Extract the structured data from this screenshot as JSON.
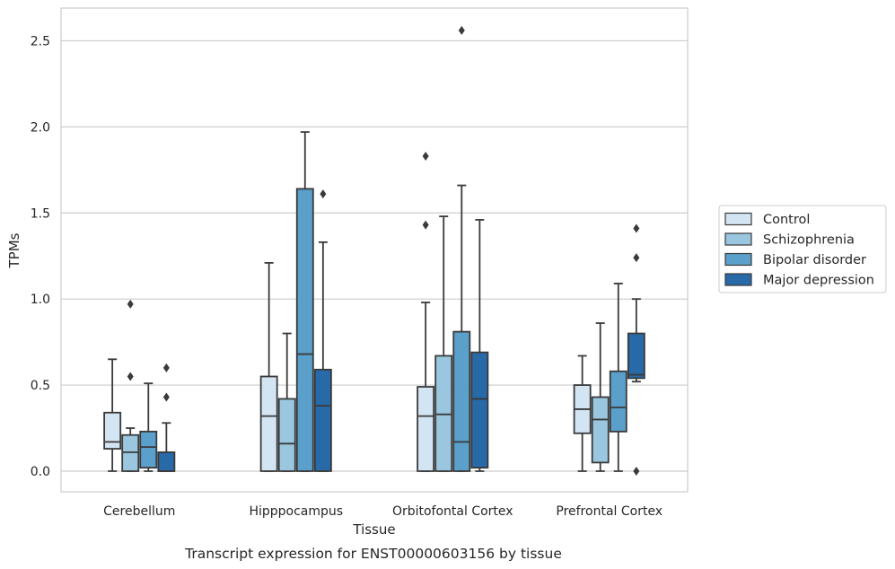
{
  "chart_data": {
    "type": "box",
    "xlabel": "Tissue",
    "ylabel": "TPMs",
    "caption": "Transcript expression for ENST00000603156 by tissue",
    "ylim": [
      -0.12,
      2.69
    ],
    "yticks": [
      "0.0",
      "0.5",
      "1.0",
      "1.5",
      "2.0",
      "2.5"
    ],
    "grid": "horizontal",
    "legend_position": "right",
    "categories": [
      "Cerebellum",
      "Hipppocampus",
      "Orbitofontal Cortex",
      "Prefrontal Cortex"
    ],
    "series": [
      {
        "name": "Control",
        "color": "#d3e4f3",
        "boxes": [
          {
            "whislo": 0.0,
            "q1": 0.13,
            "med": 0.17,
            "q3": 0.34,
            "whishi": 0.65,
            "fliers": []
          },
          {
            "whislo": 0.0,
            "q1": 0.0,
            "med": 0.32,
            "q3": 0.55,
            "whishi": 1.21,
            "fliers": []
          },
          {
            "whislo": 0.0,
            "q1": 0.0,
            "med": 0.32,
            "q3": 0.49,
            "whishi": 0.98,
            "fliers": [
              1.43,
              1.83
            ]
          },
          {
            "whislo": 0.0,
            "q1": 0.22,
            "med": 0.36,
            "q3": 0.5,
            "whishi": 0.67,
            "fliers": []
          }
        ]
      },
      {
        "name": "Schizophrenia",
        "color": "#9ac7df",
        "boxes": [
          {
            "whislo": 0.0,
            "q1": 0.0,
            "med": 0.11,
            "q3": 0.21,
            "whishi": 0.25,
            "fliers": [
              0.55,
              0.97
            ]
          },
          {
            "whislo": 0.0,
            "q1": 0.0,
            "med": 0.16,
            "q3": 0.42,
            "whishi": 0.8,
            "fliers": []
          },
          {
            "whislo": 0.0,
            "q1": 0.0,
            "med": 0.33,
            "q3": 0.67,
            "whishi": 1.48,
            "fliers": []
          },
          {
            "whislo": 0.0,
            "q1": 0.05,
            "med": 0.3,
            "q3": 0.43,
            "whishi": 0.86,
            "fliers": []
          }
        ]
      },
      {
        "name": "Bipolar disorder",
        "color": "#5b9fcb",
        "boxes": [
          {
            "whislo": 0.0,
            "q1": 0.02,
            "med": 0.14,
            "q3": 0.23,
            "whishi": 0.51,
            "fliers": []
          },
          {
            "whislo": 0.0,
            "q1": 0.0,
            "med": 0.68,
            "q3": 1.64,
            "whishi": 1.97,
            "fliers": []
          },
          {
            "whislo": 0.0,
            "q1": 0.0,
            "med": 0.17,
            "q3": 0.81,
            "whishi": 1.66,
            "fliers": [
              2.56
            ]
          },
          {
            "whislo": 0.0,
            "q1": 0.23,
            "med": 0.37,
            "q3": 0.58,
            "whishi": 1.09,
            "fliers": []
          }
        ]
      },
      {
        "name": "Major depression",
        "color": "#2869a8",
        "boxes": [
          {
            "whislo": 0.0,
            "q1": 0.0,
            "med": 0.0,
            "q3": 0.11,
            "whishi": 0.28,
            "fliers": [
              0.43,
              0.6
            ]
          },
          {
            "whislo": 0.0,
            "q1": 0.0,
            "med": 0.38,
            "q3": 0.59,
            "whishi": 1.33,
            "fliers": [
              1.61
            ]
          },
          {
            "whislo": 0.0,
            "q1": 0.02,
            "med": 0.42,
            "q3": 0.69,
            "whishi": 1.46,
            "fliers": []
          },
          {
            "whislo": 0.52,
            "q1": 0.54,
            "med": 0.56,
            "q3": 0.8,
            "whishi": 1.0,
            "fliers": [
              0.0,
              1.24,
              1.41
            ]
          }
        ]
      }
    ]
  }
}
